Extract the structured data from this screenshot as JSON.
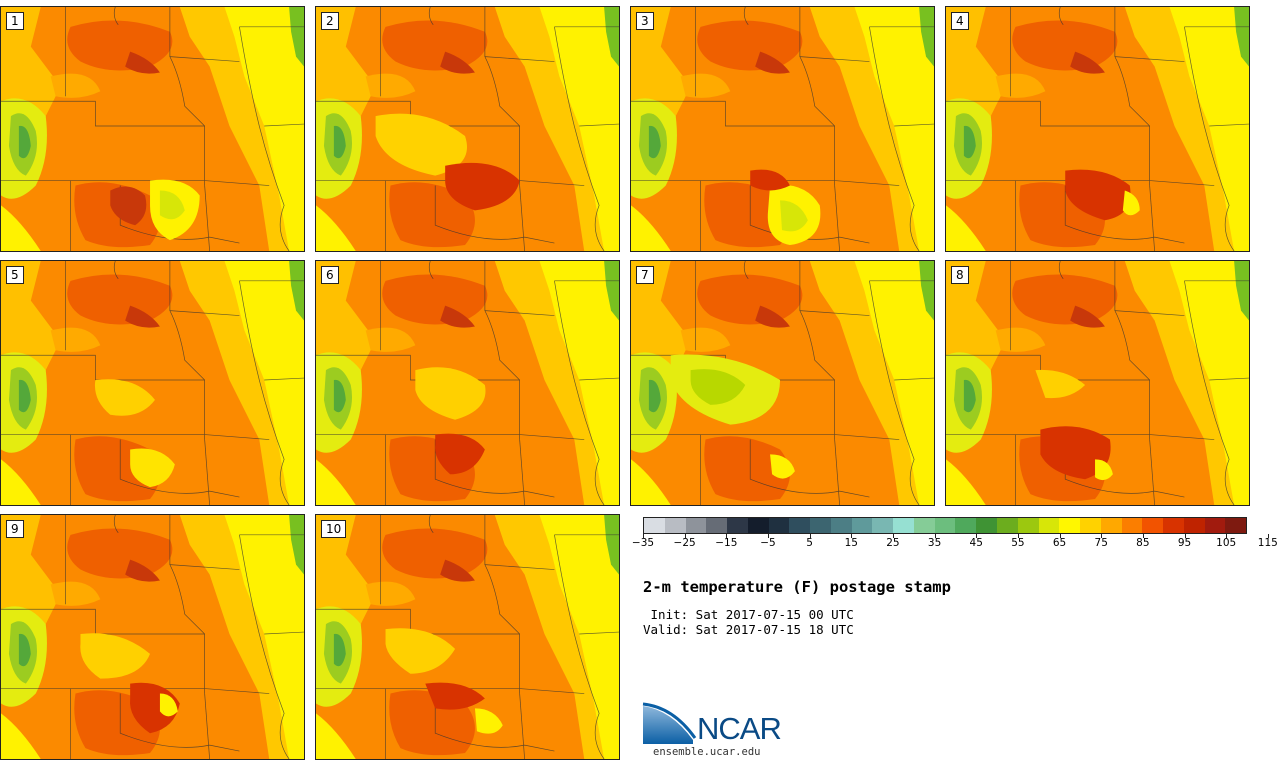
{
  "panels": [
    {
      "label": "1"
    },
    {
      "label": "2"
    },
    {
      "label": "3"
    },
    {
      "label": "4"
    },
    {
      "label": "5"
    },
    {
      "label": "6"
    },
    {
      "label": "7"
    },
    {
      "label": "8"
    },
    {
      "label": "9"
    },
    {
      "label": "10"
    }
  ],
  "colorbar": {
    "colors": [
      "#d9dde3",
      "#b8bcc3",
      "#8e939b",
      "#666c76",
      "#2d3747",
      "#141d2c",
      "#1f3040",
      "#2f4e5e",
      "#3c6570",
      "#4c7e85",
      "#5f9a9b",
      "#79b7b2",
      "#96e0d2",
      "#85cc97",
      "#6cbe7e",
      "#4fa95c",
      "#3f9334",
      "#6cad1e",
      "#9cc80f",
      "#d7e608",
      "#fff700",
      "#ffd200",
      "#ffa800",
      "#fb7e00",
      "#f25300",
      "#d83300",
      "#bf2300",
      "#a11b0e",
      "#7e1a10"
    ],
    "ticks": [
      "−35",
      "−25",
      "−15",
      "−5",
      "5",
      "15",
      "25",
      "35",
      "45",
      "55",
      "65",
      "75",
      "85",
      "95",
      "105",
      "115"
    ]
  },
  "title": "2-m temperature (F) postage stamp",
  "init_line": " Init: Sat 2017-07-15 00 UTC",
  "valid_line": "Valid: Sat 2017-07-15 18 UTC",
  "logo": {
    "name": "NCAR",
    "url": "ensemble.ucar.edu"
  }
}
